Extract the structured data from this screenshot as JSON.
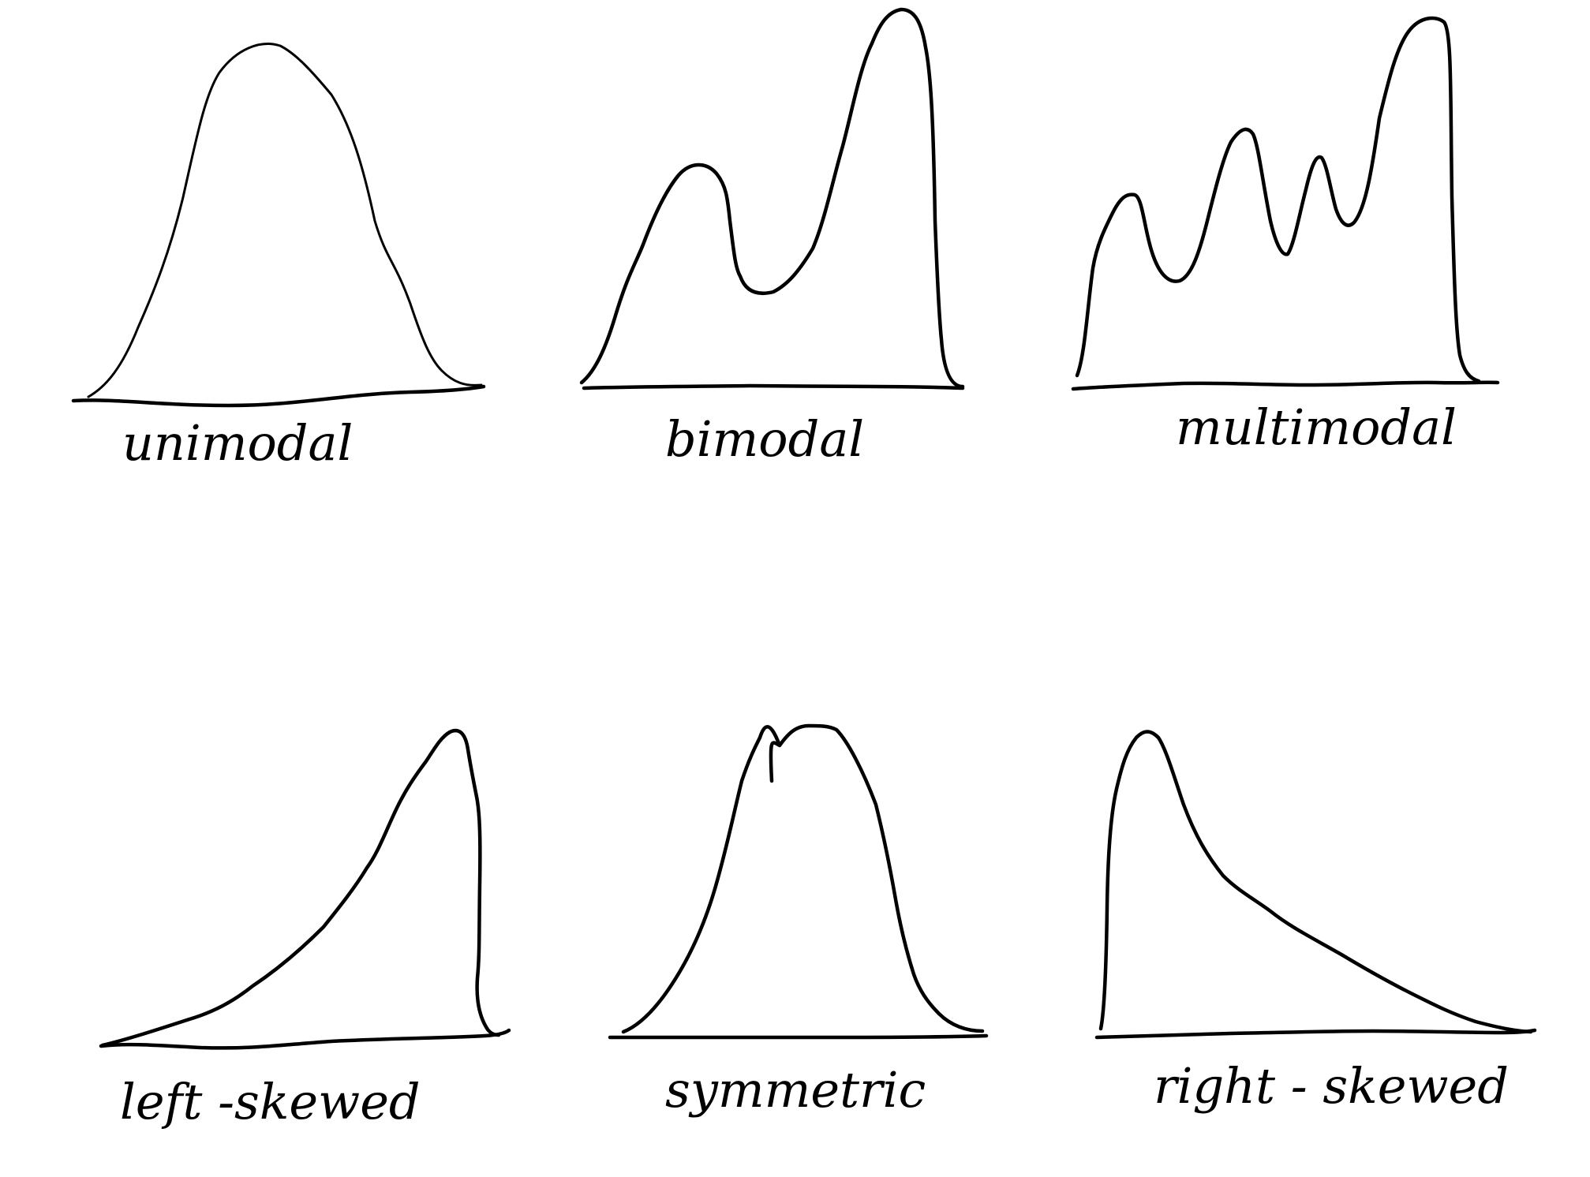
{
  "figure": {
    "background": "#ffffff",
    "ink_color": "#000000",
    "panels": [
      {
        "id": "unimodal",
        "label": "unimodal"
      },
      {
        "id": "bimodal",
        "label": "bimodal"
      },
      {
        "id": "multimodal",
        "label": "multimodal"
      },
      {
        "id": "left-skewed",
        "label": "left -skewed"
      },
      {
        "id": "symmetric",
        "label": "symmetric"
      },
      {
        "id": "right-skewed",
        "label": "right - skewed"
      }
    ]
  }
}
